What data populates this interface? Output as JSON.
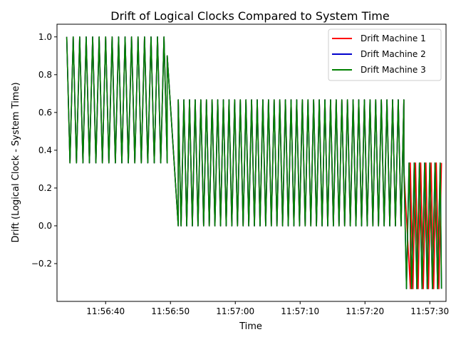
{
  "chart_data": {
    "type": "line",
    "title": "Drift of Logical Clocks Compared to System Time",
    "xlabel": "Time",
    "ylabel": "Drift (Logical Clock - System Time)",
    "x_ticks": [
      "11:56:40",
      "11:56:50",
      "11:57:00",
      "11:57:10",
      "11:57:20",
      "11:57:30"
    ],
    "y_ticks": [
      "−0.2",
      "0.0",
      "0.2",
      "0.4",
      "0.6",
      "0.8",
      "1.0"
    ],
    "x_tick_seconds": [
      40,
      50,
      60,
      70,
      80,
      90
    ],
    "y_tick_values": [
      -0.2,
      0.0,
      0.2,
      0.4,
      0.6,
      0.8,
      1.0
    ],
    "xlim_seconds": [
      32.5,
      92.5
    ],
    "ylim": [
      -0.4,
      1.067
    ],
    "grid": false,
    "legend_position": "top-right",
    "series": [
      {
        "name": "Drift Machine 1",
        "color": "#ff0000",
        "segments": [
          {
            "start": 34.0,
            "end": 49.5,
            "high": 1.0,
            "low": 0.333,
            "period": 1.0
          },
          {
            "start": 49.5,
            "end": 51.2,
            "from": 0.9,
            "to": 0.0
          },
          {
            "start": 51.2,
            "end": 86.0,
            "high": 0.667,
            "low": 0.0,
            "period": 0.87
          },
          {
            "start": 86.0,
            "end": 87.0,
            "from": 0.3,
            "to": -0.333
          },
          {
            "start": 87.0,
            "end": 91.8,
            "high": 0.333,
            "low": -0.333,
            "period": 0.8
          }
        ]
      },
      {
        "name": "Drift Machine 2",
        "color": "#0000cc",
        "segments": [
          {
            "start": 34.0,
            "end": 49.5,
            "high": 1.0,
            "low": 0.333,
            "period": 1.0
          },
          {
            "start": 49.5,
            "end": 51.2,
            "from": 0.9,
            "to": 0.0
          },
          {
            "start": 51.2,
            "end": 86.0,
            "high": 0.667,
            "low": 0.0,
            "period": 0.87
          },
          {
            "start": 86.0,
            "end": 91.8,
            "high": 0.333,
            "low": -0.333,
            "period": 0.8
          }
        ]
      },
      {
        "name": "Drift Machine 3",
        "color": "#008000",
        "segments": [
          {
            "start": 34.0,
            "end": 49.5,
            "high": 1.0,
            "low": 0.333,
            "period": 1.0
          },
          {
            "start": 49.5,
            "end": 51.2,
            "from": 0.9,
            "to": 0.0
          },
          {
            "start": 51.2,
            "end": 86.0,
            "high": 0.667,
            "low": 0.0,
            "period": 0.87
          },
          {
            "start": 86.0,
            "end": 91.8,
            "high": 0.333,
            "low": -0.333,
            "period": 0.8
          }
        ]
      }
    ]
  }
}
